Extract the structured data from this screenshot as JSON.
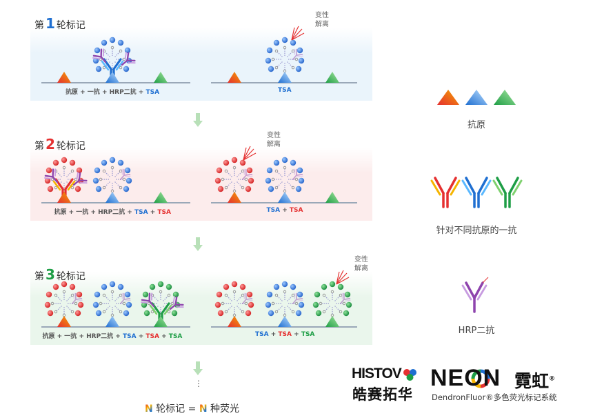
{
  "rounds": [
    {
      "label_pre": "第",
      "num": "1",
      "label_post": "轮标记",
      "num_color": "#1f6fd1",
      "bg": "#eaf4fb",
      "left_caption": [
        {
          "t": "抗原 + 一抗 + HRP二抗 + ",
          "c": ""
        },
        {
          "t": "TSA",
          "c": "blue"
        }
      ],
      "right_caption": [
        {
          "t": "TSA",
          "c": "blue"
        }
      ],
      "denature": [
        "变性",
        "解离"
      ]
    },
    {
      "label_pre": "第",
      "num": "2",
      "label_post": "轮标记",
      "num_color": "#e53030",
      "bg": "#fcecec",
      "left_caption": [
        {
          "t": "抗原 + 一抗 + HRP二抗 + ",
          "c": ""
        },
        {
          "t": "TSA",
          "c": "blue"
        },
        {
          "t": " + ",
          "c": ""
        },
        {
          "t": "TSA",
          "c": "red"
        }
      ],
      "right_caption": [
        {
          "t": "TSA",
          "c": "blue"
        },
        {
          "t": " + ",
          "c": ""
        },
        {
          "t": "TSA",
          "c": "red"
        }
      ],
      "denature": [
        "变性",
        "解离"
      ]
    },
    {
      "label_pre": "第",
      "num": "3",
      "label_post": "轮标记",
      "num_color": "#1e9e46",
      "bg": "#eaf6ec",
      "left_caption": [
        {
          "t": "抗原 + 一抗 + HRP二抗 + ",
          "c": ""
        },
        {
          "t": "TSA",
          "c": "blue"
        },
        {
          "t": " + ",
          "c": ""
        },
        {
          "t": "TSA",
          "c": "red"
        },
        {
          "t": " + ",
          "c": ""
        },
        {
          "t": "TSA",
          "c": "green"
        }
      ],
      "right_caption": [
        {
          "t": "TSA",
          "c": "blue"
        },
        {
          "t": " + ",
          "c": ""
        },
        {
          "t": "TSA",
          "c": "red"
        },
        {
          "t": " + ",
          "c": ""
        },
        {
          "t": "TSA",
          "c": "green"
        }
      ],
      "denature": [
        "变性",
        "解离"
      ]
    }
  ],
  "legend": {
    "antigen": "抗原",
    "primary": "针对不同抗原的一抗",
    "secondary": "HRP二抗"
  },
  "footer": {
    "dots": "⋮",
    "formula": "轮标记 = ",
    "formula_end": "种荧光",
    "n": "N"
  },
  "logos": {
    "histo": "HISTOV",
    "histo_cn": "皓赛拓华",
    "neon": "NEON",
    "neon_cn": "霓虹",
    "reg": "®",
    "sub": "DendronFluor®多色荧光标记系统"
  },
  "colors": {
    "blue": "#1f6fd1",
    "red": "#e53030",
    "green": "#1e9e46",
    "orange": "#f07818",
    "purple": "#8e44ad"
  }
}
